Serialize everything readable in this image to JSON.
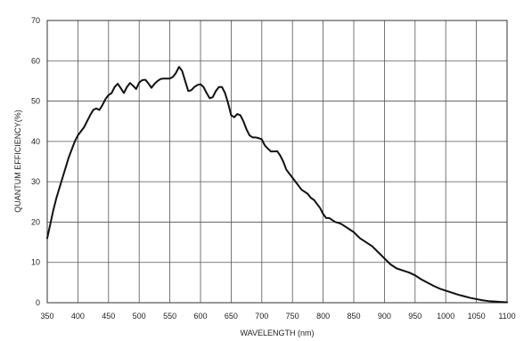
{
  "chart_data": {
    "type": "line",
    "title": "",
    "xlabel": "WAVELENGTH (nm)",
    "ylabel": "QUANTUM EFFICIENCY(%)",
    "xlim": [
      350,
      1100
    ],
    "ylim": [
      0,
      70
    ],
    "xticks": [
      "350",
      "400",
      "450",
      "500",
      "550",
      "600",
      "650",
      "700",
      "750",
      "800",
      "850",
      "900",
      "950",
      "1000",
      "1050",
      "1100"
    ],
    "yticks": [
      "0",
      "10",
      "20",
      "30",
      "40",
      "50",
      "60",
      "70"
    ],
    "grid": true,
    "legend": "none",
    "series": [
      {
        "color": "#111111",
        "x": [
          350,
          355,
          360,
          365,
          370,
          375,
          380,
          385,
          390,
          395,
          400,
          405,
          410,
          415,
          420,
          425,
          430,
          435,
          440,
          445,
          450,
          455,
          460,
          465,
          470,
          475,
          480,
          485,
          490,
          495,
          500,
          505,
          510,
          515,
          520,
          525,
          530,
          535,
          540,
          545,
          550,
          555,
          560,
          565,
          570,
          575,
          580,
          585,
          590,
          595,
          600,
          605,
          610,
          615,
          620,
          625,
          630,
          635,
          640,
          645,
          650,
          655,
          660,
          665,
          670,
          675,
          680,
          685,
          690,
          695,
          700,
          705,
          710,
          715,
          720,
          725,
          730,
          735,
          740,
          745,
          750,
          755,
          760,
          765,
          770,
          775,
          780,
          785,
          790,
          795,
          800,
          805,
          810,
          815,
          820,
          825,
          830,
          835,
          840,
          845,
          850,
          860,
          870,
          880,
          890,
          900,
          910,
          920,
          930,
          940,
          950,
          960,
          970,
          980,
          990,
          1000,
          1010,
          1020,
          1030,
          1040,
          1050,
          1060,
          1070,
          1080,
          1090,
          1100
        ],
        "y": [
          16,
          19.5,
          23,
          26,
          28.5,
          31,
          33.5,
          36,
          38,
          40,
          41.5,
          42.5,
          43.5,
          45,
          46.5,
          47.8,
          48.2,
          47.8,
          49,
          50.5,
          51.5,
          52,
          53.5,
          54.3,
          53.2,
          52,
          53.5,
          54.5,
          53.8,
          53,
          54.6,
          55.2,
          55.3,
          54.4,
          53.3,
          54.3,
          55,
          55.5,
          55.6,
          55.6,
          55.6,
          56,
          57,
          58.5,
          57.5,
          55,
          52.5,
          52.7,
          53.5,
          54,
          54.2,
          53.5,
          52,
          50.7,
          51,
          52.5,
          53.5,
          53.5,
          52,
          49.5,
          46.5,
          46,
          46.8,
          46.5,
          45,
          43,
          41.5,
          41,
          41,
          40.8,
          40.5,
          39,
          38.2,
          37.5,
          37.5,
          37.6,
          36.5,
          35,
          33,
          32,
          31,
          30,
          29,
          28,
          27.5,
          27,
          26,
          25.5,
          24.5,
          23.5,
          22,
          21,
          21,
          20.5,
          20,
          19.8,
          19.5,
          19,
          18.5,
          18,
          17.5,
          16,
          15,
          14,
          12.5,
          11,
          9.5,
          8.5,
          8,
          7.5,
          6.8,
          5.8,
          5,
          4.2,
          3.5,
          3,
          2.5,
          2,
          1.6,
          1.2,
          0.9,
          0.6,
          0.4,
          0.3,
          0.2,
          0.1
        ]
      }
    ]
  }
}
